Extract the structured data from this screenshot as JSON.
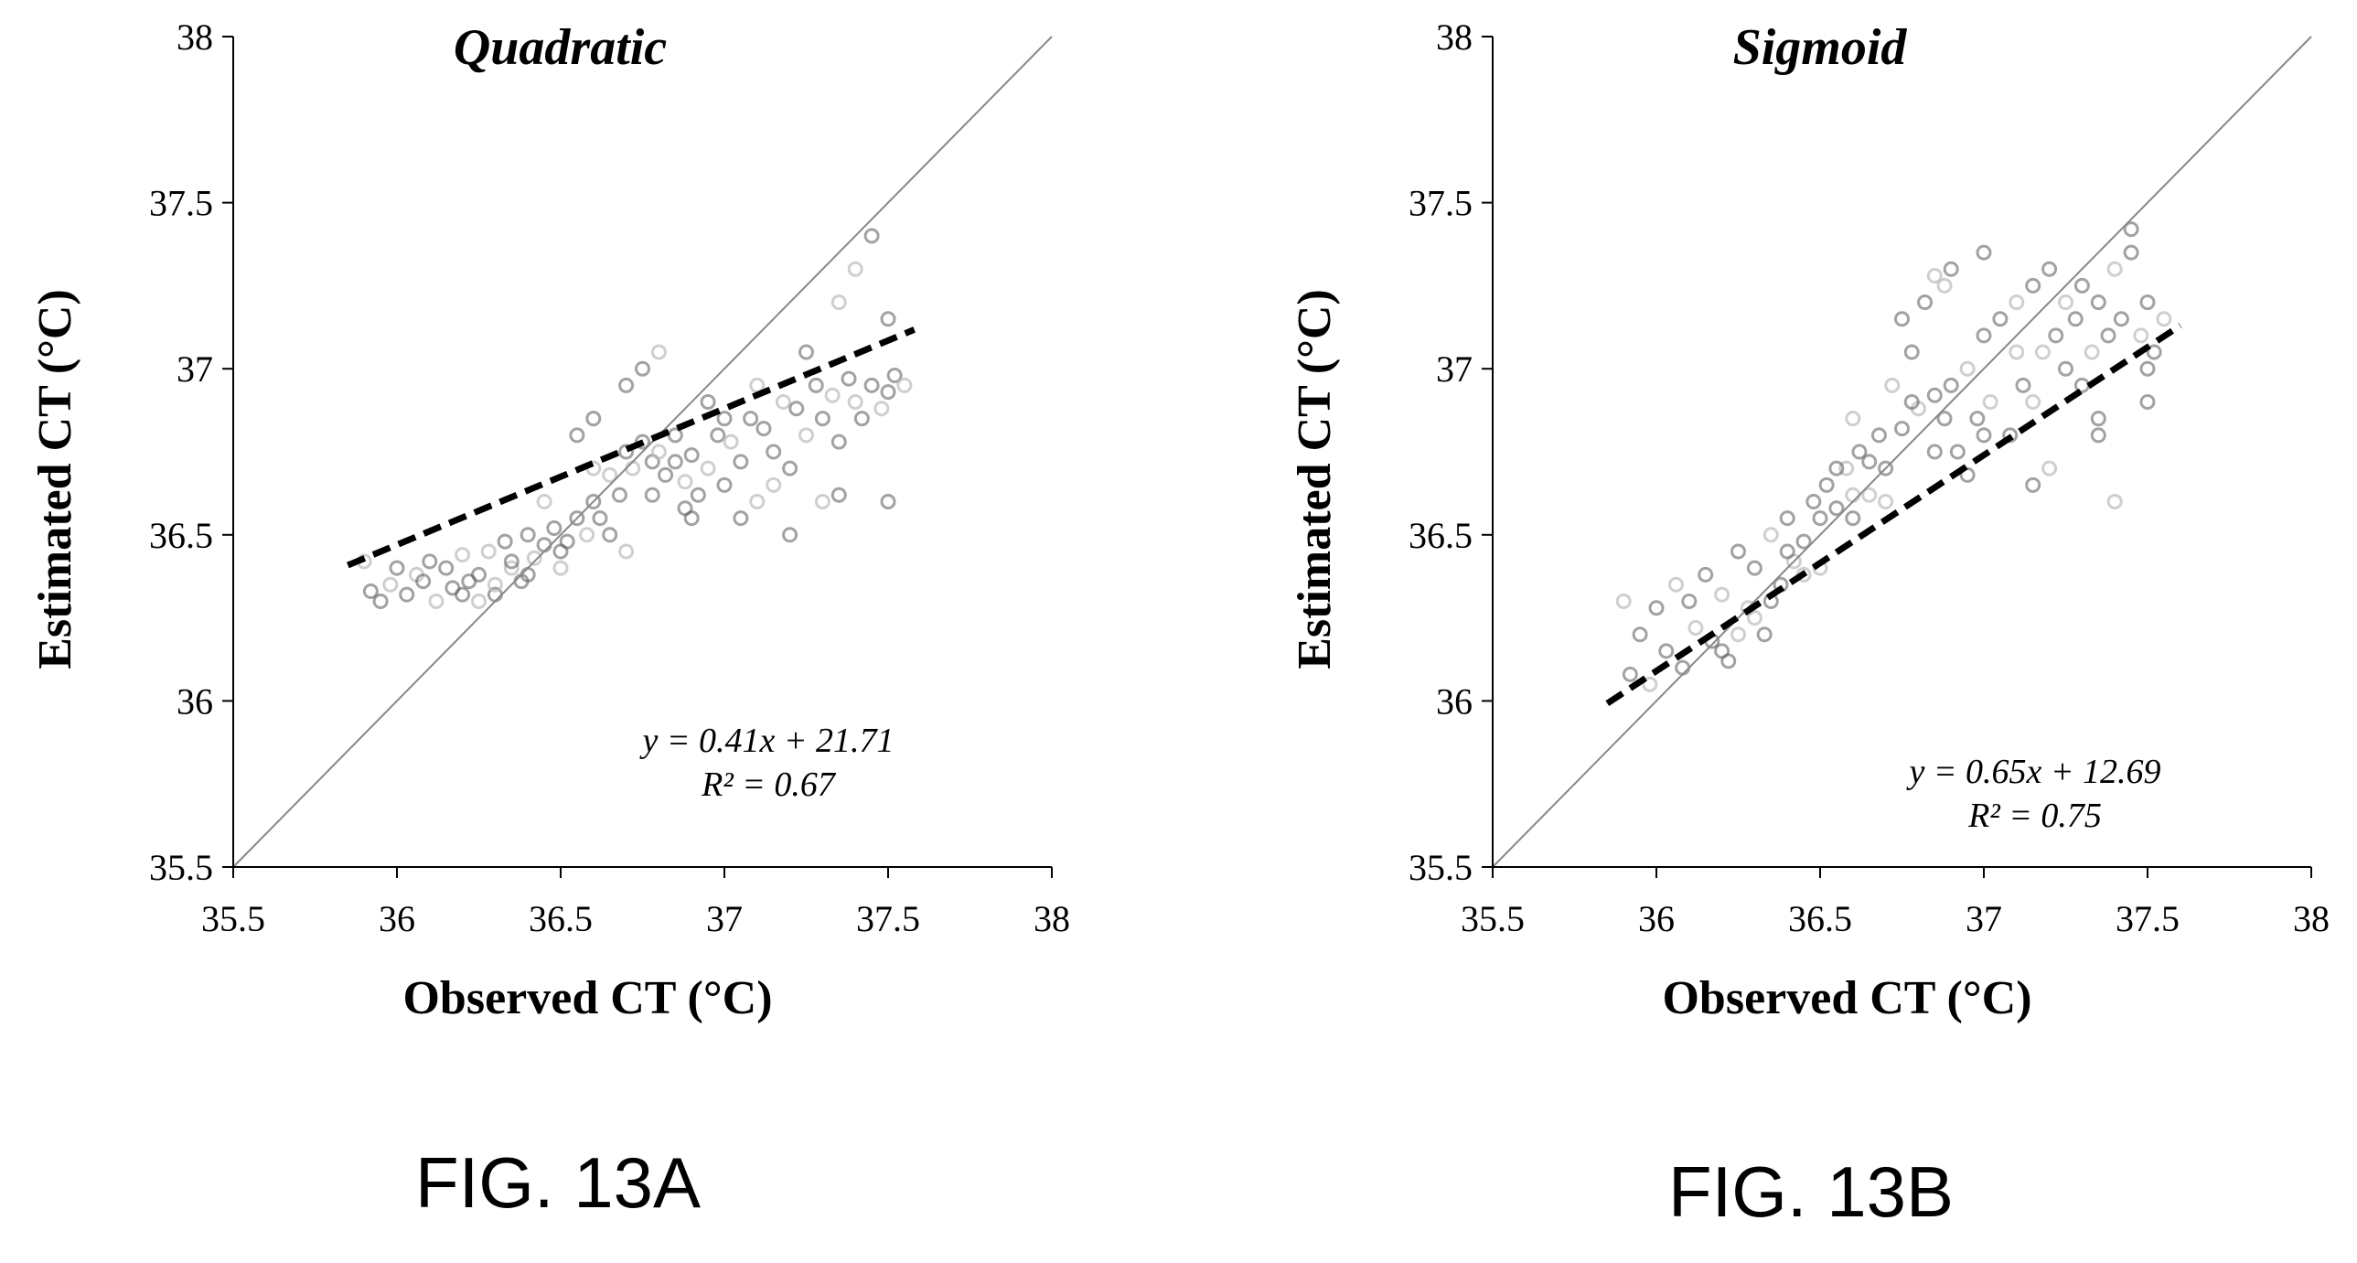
{
  "chart_data": [
    {
      "type": "scatter",
      "figure_label": "FIG. 13A",
      "title": "Quadratic",
      "xlabel": "Observed CT (°C)",
      "ylabel": "Estimated CT (°C)",
      "xlim": [
        35.5,
        38
      ],
      "ylim": [
        35.5,
        38
      ],
      "xticks": [
        "35.5",
        "36",
        "36.5",
        "37",
        "37.5",
        "38"
      ],
      "yticks": [
        "35.5",
        "36",
        "36.5",
        "37",
        "37.5",
        "38"
      ],
      "identity_line": true,
      "equation": "y = 0.41x + 21.71",
      "r_squared": "R² = 0.67",
      "fit": {
        "slope": 0.41,
        "intercept": 21.71,
        "x_range": [
          35.85,
          37.58
        ]
      },
      "colors": {
        "points_dark": "#555555",
        "points_light": "#bbbbbb",
        "fit_line": "#000000",
        "identity_line": "#888888"
      },
      "points": [
        [
          35.9,
          36.42
        ],
        [
          35.92,
          36.33
        ],
        [
          35.95,
          36.3
        ],
        [
          35.98,
          36.35
        ],
        [
          36.0,
          36.4
        ],
        [
          36.03,
          36.32
        ],
        [
          36.06,
          36.38
        ],
        [
          36.08,
          36.36
        ],
        [
          36.1,
          36.42
        ],
        [
          36.12,
          36.3
        ],
        [
          36.15,
          36.4
        ],
        [
          36.17,
          36.34
        ],
        [
          36.2,
          36.44
        ],
        [
          36.22,
          36.36
        ],
        [
          36.25,
          36.38
        ],
        [
          36.28,
          36.45
        ],
        [
          36.3,
          36.32
        ],
        [
          36.33,
          36.48
        ],
        [
          36.35,
          36.4
        ],
        [
          36.38,
          36.36
        ],
        [
          36.4,
          36.5
        ],
        [
          36.42,
          36.43
        ],
        [
          36.45,
          36.47
        ],
        [
          36.48,
          36.52
        ],
        [
          36.5,
          36.4
        ],
        [
          36.52,
          36.48
        ],
        [
          36.55,
          36.55
        ],
        [
          36.58,
          36.5
        ],
        [
          36.6,
          36.6
        ],
        [
          36.62,
          36.55
        ],
        [
          36.65,
          36.68
        ],
        [
          36.68,
          36.62
        ],
        [
          36.7,
          36.75
        ],
        [
          36.72,
          36.7
        ],
        [
          36.75,
          36.78
        ],
        [
          36.78,
          36.72
        ],
        [
          36.8,
          36.75
        ],
        [
          36.82,
          36.68
        ],
        [
          36.85,
          36.72
        ],
        [
          36.88,
          36.66
        ],
        [
          36.9,
          36.74
        ],
        [
          36.92,
          36.62
        ],
        [
          36.95,
          36.7
        ],
        [
          36.98,
          36.8
        ],
        [
          37.0,
          36.65
        ],
        [
          37.02,
          36.78
        ],
        [
          37.05,
          36.72
        ],
        [
          37.08,
          36.85
        ],
        [
          37.1,
          36.6
        ],
        [
          37.12,
          36.82
        ],
        [
          37.15,
          36.75
        ],
        [
          37.18,
          36.9
        ],
        [
          37.2,
          36.7
        ],
        [
          37.22,
          36.88
        ],
        [
          37.25,
          36.8
        ],
        [
          37.28,
          36.95
        ],
        [
          37.3,
          36.85
        ],
        [
          37.33,
          36.92
        ],
        [
          37.35,
          36.78
        ],
        [
          37.38,
          36.97
        ],
        [
          37.4,
          36.9
        ],
        [
          37.42,
          36.85
        ],
        [
          37.45,
          36.95
        ],
        [
          37.48,
          36.88
        ],
        [
          37.5,
          36.93
        ],
        [
          37.52,
          36.98
        ],
        [
          37.55,
          36.95
        ],
        [
          36.75,
          37.0
        ],
        [
          36.7,
          36.95
        ],
        [
          36.8,
          37.05
        ],
        [
          36.6,
          36.85
        ],
        [
          36.55,
          36.8
        ],
        [
          37.4,
          37.3
        ],
        [
          37.45,
          37.4
        ],
        [
          37.5,
          37.15
        ],
        [
          37.35,
          37.2
        ],
        [
          36.9,
          36.55
        ],
        [
          37.05,
          36.55
        ],
        [
          37.3,
          36.6
        ],
        [
          37.2,
          36.5
        ],
        [
          36.4,
          36.38
        ],
        [
          36.3,
          36.35
        ],
        [
          36.2,
          36.32
        ],
        [
          36.5,
          36.45
        ],
        [
          36.45,
          36.6
        ],
        [
          36.35,
          36.42
        ],
        [
          36.65,
          36.5
        ],
        [
          36.7,
          36.45
        ],
        [
          36.85,
          36.8
        ],
        [
          36.95,
          36.9
        ],
        [
          37.1,
          36.95
        ],
        [
          37.25,
          37.05
        ],
        [
          37.0,
          36.85
        ],
        [
          36.6,
          36.7
        ],
        [
          36.78,
          36.62
        ],
        [
          36.88,
          36.58
        ],
        [
          37.15,
          36.65
        ],
        [
          37.35,
          36.62
        ],
        [
          37.5,
          36.6
        ],
        [
          36.25,
          36.3
        ]
      ]
    },
    {
      "type": "scatter",
      "figure_label": "FIG. 13B",
      "title": "Sigmoid",
      "xlabel": "Observed CT (°C)",
      "ylabel": "Estimated CT (°C)",
      "xlim": [
        35.5,
        38
      ],
      "ylim": [
        35.5,
        38
      ],
      "xticks": [
        "35.5",
        "36",
        "36.5",
        "37",
        "37.5",
        "38"
      ],
      "yticks": [
        "35.5",
        "36",
        "36.5",
        "37",
        "37.5",
        "38"
      ],
      "identity_line": true,
      "equation": "y = 0.65x + 12.69",
      "r_squared": "R² = 0.75",
      "fit": {
        "slope": 0.65,
        "intercept": 12.69,
        "x_range": [
          35.85,
          37.6
        ]
      },
      "colors": {
        "points_dark": "#555555",
        "points_light": "#bbbbbb",
        "fit_line": "#000000",
        "identity_line": "#888888"
      },
      "points": [
        [
          35.9,
          36.3
        ],
        [
          35.92,
          36.08
        ],
        [
          35.95,
          36.2
        ],
        [
          35.98,
          36.05
        ],
        [
          36.0,
          36.28
        ],
        [
          36.03,
          36.15
        ],
        [
          36.06,
          36.35
        ],
        [
          36.08,
          36.1
        ],
        [
          36.1,
          36.3
        ],
        [
          36.12,
          36.22
        ],
        [
          36.15,
          36.38
        ],
        [
          36.17,
          36.18
        ],
        [
          36.2,
          36.32
        ],
        [
          36.22,
          36.12
        ],
        [
          36.25,
          36.45
        ],
        [
          36.28,
          36.28
        ],
        [
          36.3,
          36.4
        ],
        [
          36.33,
          36.2
        ],
        [
          36.35,
          36.5
        ],
        [
          36.38,
          36.35
        ],
        [
          36.4,
          36.55
        ],
        [
          36.42,
          36.42
        ],
        [
          36.45,
          36.48
        ],
        [
          36.48,
          36.6
        ],
        [
          36.5,
          36.4
        ],
        [
          36.52,
          36.65
        ],
        [
          36.55,
          36.58
        ],
        [
          36.58,
          36.7
        ],
        [
          36.6,
          36.55
        ],
        [
          36.62,
          36.75
        ],
        [
          36.65,
          36.62
        ],
        [
          36.68,
          36.8
        ],
        [
          36.7,
          36.7
        ],
        [
          36.72,
          36.95
        ],
        [
          36.75,
          36.82
        ],
        [
          36.78,
          37.05
        ],
        [
          36.8,
          36.88
        ],
        [
          36.82,
          37.2
        ],
        [
          36.85,
          36.92
        ],
        [
          36.88,
          37.25
        ],
        [
          36.9,
          36.95
        ],
        [
          36.92,
          36.75
        ],
        [
          36.95,
          37.0
        ],
        [
          36.98,
          36.85
        ],
        [
          37.0,
          37.1
        ],
        [
          37.02,
          36.9
        ],
        [
          37.05,
          37.15
        ],
        [
          37.08,
          36.8
        ],
        [
          37.1,
          37.2
        ],
        [
          37.12,
          36.95
        ],
        [
          37.15,
          37.25
        ],
        [
          37.18,
          37.05
        ],
        [
          37.2,
          37.3
        ],
        [
          37.22,
          37.1
        ],
        [
          37.25,
          37.2
        ],
        [
          37.28,
          37.15
        ],
        [
          37.3,
          37.25
        ],
        [
          37.33,
          37.05
        ],
        [
          37.35,
          37.2
        ],
        [
          37.38,
          37.1
        ],
        [
          37.4,
          37.3
        ],
        [
          37.42,
          37.15
        ],
        [
          37.45,
          37.35
        ],
        [
          37.48,
          37.1
        ],
        [
          37.5,
          37.2
        ],
        [
          37.52,
          37.05
        ],
        [
          37.55,
          37.15
        ],
        [
          37.45,
          37.42
        ],
        [
          37.3,
          36.95
        ],
        [
          37.2,
          36.7
        ],
        [
          37.35,
          36.8
        ],
        [
          37.15,
          36.65
        ],
        [
          37.4,
          36.6
        ],
        [
          37.5,
          36.9
        ],
        [
          36.9,
          37.3
        ],
        [
          36.85,
          37.28
        ],
        [
          37.0,
          37.35
        ],
        [
          36.75,
          37.15
        ],
        [
          36.6,
          36.85
        ],
        [
          36.55,
          36.7
        ],
        [
          36.4,
          36.45
        ],
        [
          36.3,
          36.25
        ],
        [
          36.2,
          36.15
        ],
        [
          36.5,
          36.55
        ],
        [
          36.45,
          36.38
        ],
        [
          36.35,
          36.3
        ],
        [
          36.65,
          36.72
        ],
        [
          36.7,
          36.6
        ],
        [
          36.85,
          36.75
        ],
        [
          36.95,
          36.68
        ],
        [
          37.1,
          37.05
        ],
        [
          37.25,
          37.0
        ],
        [
          37.0,
          36.8
        ],
        [
          36.6,
          36.62
        ],
        [
          36.78,
          36.9
        ],
        [
          36.88,
          36.85
        ],
        [
          37.15,
          36.9
        ],
        [
          37.35,
          36.85
        ],
        [
          37.5,
          37.0
        ],
        [
          36.25,
          36.2
        ]
      ]
    }
  ]
}
